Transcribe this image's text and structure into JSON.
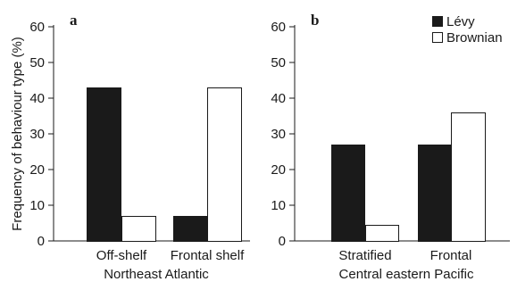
{
  "y_axis_label": "Frequency of behaviour type (%)",
  "legend": {
    "items": [
      {
        "label": "Lévy",
        "color": "#1a1a1a"
      },
      {
        "label": "Brownian",
        "color": "#ffffff"
      }
    ]
  },
  "chart_data": [
    {
      "type": "bar",
      "panel": "a",
      "title": "",
      "xlabel": "Northeast Atlantic",
      "ylabel": "Frequency of behaviour type (%)",
      "ylim": [
        0,
        60
      ],
      "yticks": [
        0,
        10,
        20,
        30,
        40,
        50,
        60
      ],
      "categories": [
        "Off-shelf",
        "Frontal shelf"
      ],
      "series": [
        {
          "name": "Lévy",
          "color": "#1a1a1a",
          "values": [
            43,
            7
          ]
        },
        {
          "name": "Brownian",
          "color": "#ffffff",
          "values": [
            7,
            43
          ]
        }
      ],
      "grid": false
    },
    {
      "type": "bar",
      "panel": "b",
      "title": "",
      "xlabel": "Central eastern Pacific",
      "ylabel": "",
      "ylim": [
        0,
        60
      ],
      "yticks": [
        0,
        10,
        20,
        30,
        40,
        50,
        60
      ],
      "categories": [
        "Stratified",
        "Frontal"
      ],
      "series": [
        {
          "name": "Lévy",
          "color": "#1a1a1a",
          "values": [
            27,
            27
          ]
        },
        {
          "name": "Brownian",
          "color": "#ffffff",
          "values": [
            4.5,
            36
          ]
        }
      ],
      "grid": false,
      "legend_position": "top-right"
    }
  ]
}
